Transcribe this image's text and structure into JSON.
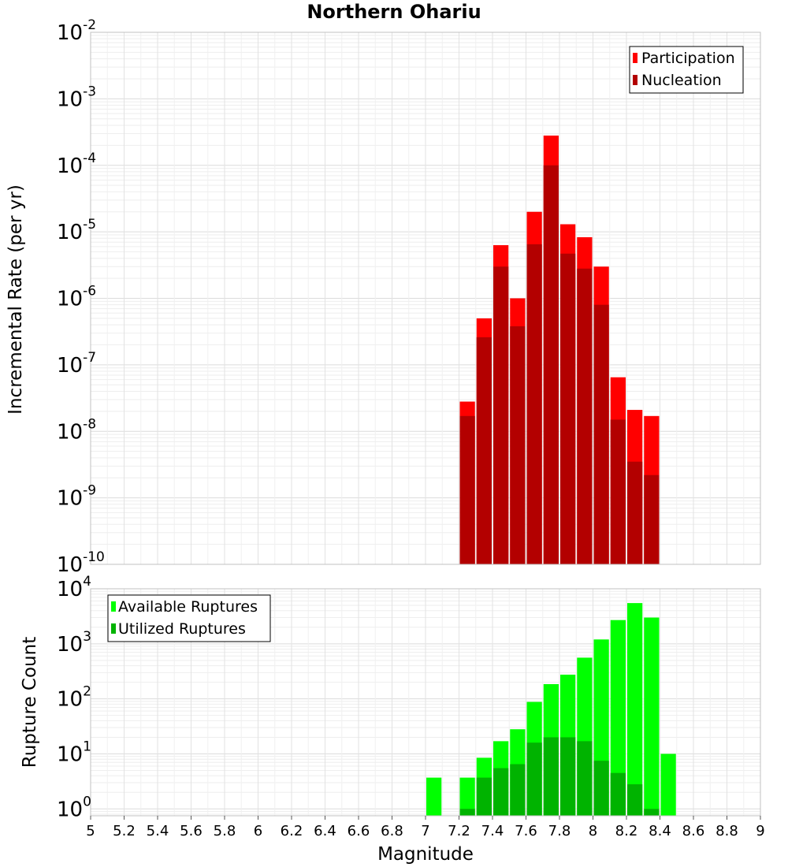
{
  "chart_data": [
    {
      "type": "bar",
      "title": "Northern Ohariu",
      "xlabel": "",
      "ylabel": "Incremental Rate (per yr)",
      "yscale": "log",
      "ylim": [
        1e-10,
        0.01
      ],
      "xlim": [
        5,
        9
      ],
      "grid": true,
      "legend_position": "top-right",
      "x": [
        7.25,
        7.35,
        7.45,
        7.55,
        7.65,
        7.75,
        7.85,
        7.95,
        8.05,
        8.15,
        8.25,
        8.35
      ],
      "series": [
        {
          "name": "Participation",
          "color": "#ff0000",
          "values": [
            2.8e-08,
            5e-07,
            6.3e-06,
            1e-06,
            2e-05,
            0.00028,
            1.3e-05,
            8.3e-06,
            3e-06,
            6.5e-08,
            2.1e-08,
            1.7e-08
          ]
        },
        {
          "name": "Nucleation",
          "color": "#b30000",
          "values": [
            1.7e-08,
            2.6e-07,
            3e-06,
            3.8e-07,
            6.5e-06,
            0.0001,
            4.7e-06,
            2.8e-06,
            8e-07,
            1.5e-08,
            3.5e-09,
            2.2e-09
          ]
        }
      ]
    },
    {
      "type": "bar",
      "title": "",
      "xlabel": "Magnitude",
      "ylabel": "Rupture Count",
      "yscale": "log",
      "ylim": [
        0.75,
        10000
      ],
      "xlim": [
        5,
        9
      ],
      "grid": true,
      "legend_position": "top-left",
      "x": [
        7.05,
        7.25,
        7.35,
        7.45,
        7.55,
        7.65,
        7.75,
        7.85,
        7.95,
        8.05,
        8.15,
        8.25,
        8.35,
        8.45
      ],
      "series": [
        {
          "name": "Available Ruptures",
          "color": "#00ff00",
          "values": [
            3.7,
            3.7,
            8.5,
            17,
            28,
            88,
            185,
            275,
            560,
            1200,
            2700,
            5500,
            3000,
            10
          ]
        },
        {
          "name": "Utilized Ruptures",
          "color": "#00b300",
          "values": [
            0,
            1,
            3.7,
            5.5,
            6.5,
            16,
            20,
            20,
            17,
            7.5,
            4.5,
            2.8,
            1,
            0
          ]
        }
      ]
    }
  ],
  "panels": {
    "top": {
      "title": "Northern Ohariu",
      "ylabel": "Incremental Rate (per yr)",
      "ytick_base": "10",
      "ytick_exponents": [
        "-10",
        "-9",
        "-8",
        "-7",
        "-6",
        "-5",
        "-4",
        "-3",
        "-2"
      ],
      "legend": [
        "Participation",
        "Nucleation"
      ]
    },
    "bottom": {
      "ylabel": "Rupture Count",
      "xlabel": "Magnitude",
      "ytick_base": "10",
      "ytick_exponents": [
        "0",
        "1",
        "2",
        "3",
        "4"
      ],
      "legend": [
        "Available Ruptures",
        "Utilized Ruptures"
      ]
    },
    "xticks": [
      "5",
      "5.2",
      "5.4",
      "5.6",
      "5.8",
      "6",
      "6.2",
      "6.4",
      "6.6",
      "6.8",
      "7",
      "7.2",
      "7.4",
      "7.6",
      "7.8",
      "8",
      "8.2",
      "8.4",
      "8.6",
      "8.8",
      "9"
    ]
  }
}
